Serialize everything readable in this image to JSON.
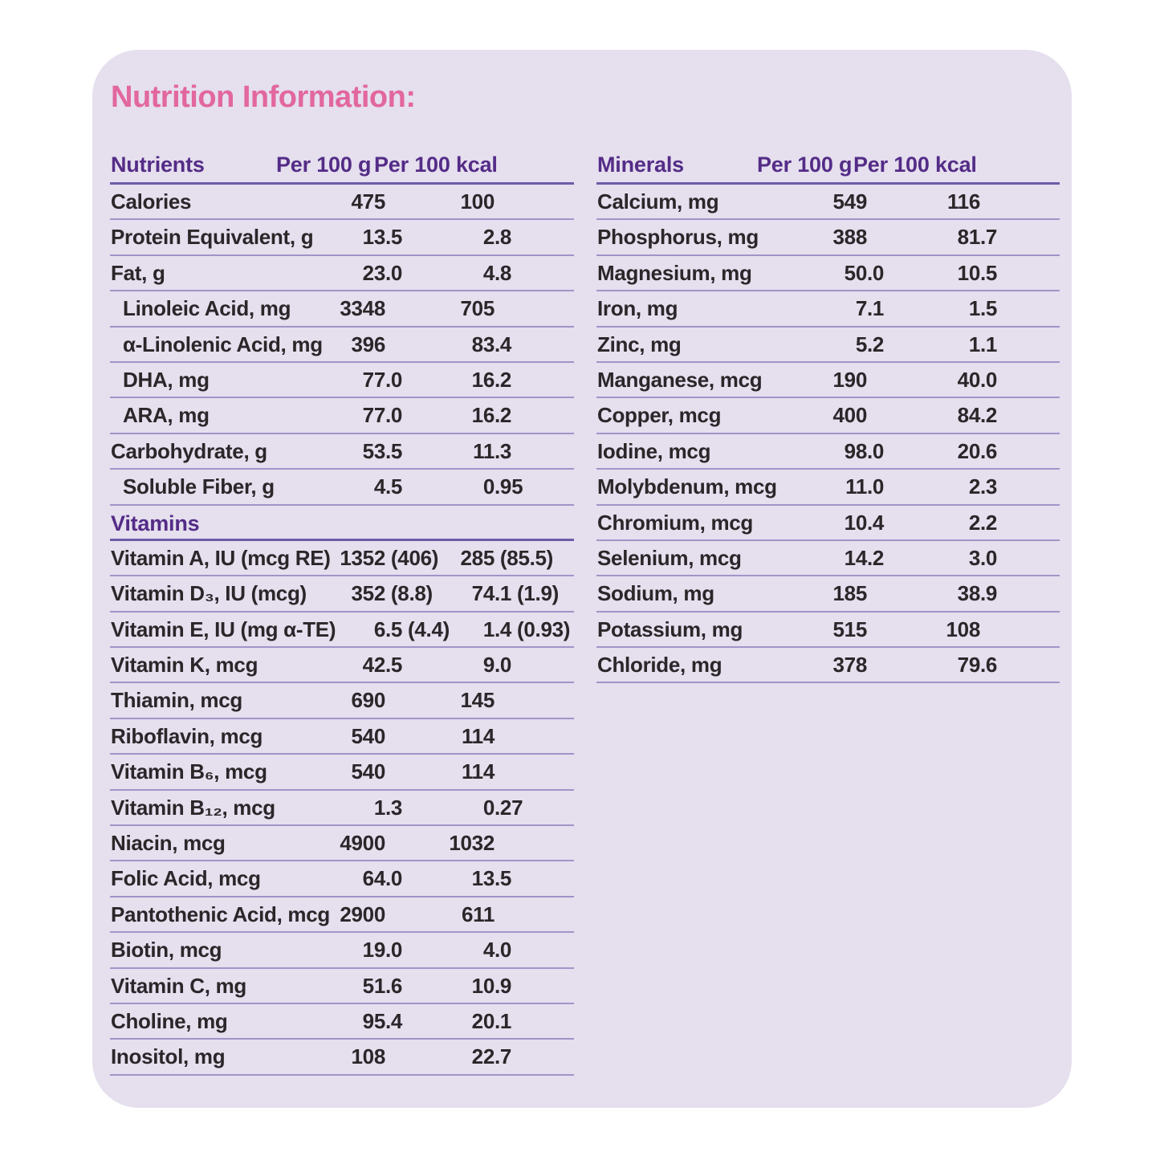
{
  "title": "Nutrition Information:",
  "colors": {
    "card_background": "#E5DFEE",
    "title_pink": "#E2679F",
    "header_purple": "#542C87",
    "body_text": "#2B2629",
    "row_line": "#A194C8",
    "header_line": "#6C5CA7"
  },
  "nutrients_table": {
    "header": {
      "label": "Nutrients",
      "col1": "Per 100 g",
      "col2": "Per 100 kcal"
    },
    "rows": [
      {
        "label": "Calories",
        "per100g": "475",
        "per100kcal": "100"
      },
      {
        "label": "Protein Equivalent, g",
        "per100g": "13.5",
        "per100kcal": "2.8"
      },
      {
        "label": "Fat, g",
        "per100g": "23.0",
        "per100kcal": "4.8"
      },
      {
        "label": "Linoleic Acid, mg",
        "indent": true,
        "per100g": "3348",
        "per100kcal": "705"
      },
      {
        "label": "α-Linolenic Acid, mg",
        "indent": true,
        "per100g": "396",
        "per100kcal": "83.4"
      },
      {
        "label": "DHA, mg",
        "indent": true,
        "per100g": "77.0",
        "per100kcal": "16.2"
      },
      {
        "label": "ARA, mg",
        "indent": true,
        "per100g": "77.0",
        "per100kcal": "16.2"
      },
      {
        "label": "Carbohydrate, g",
        "per100g": "53.5",
        "per100kcal": "11.3"
      },
      {
        "label": "Soluble Fiber, g",
        "indent": true,
        "per100g": "4.5",
        "per100kcal": "0.95"
      },
      {
        "section": "Vitamins"
      },
      {
        "label": "Vitamin A, IU (mcg RE)",
        "per100g": "1352 (406)",
        "per100kcal": "285 (85.5)"
      },
      {
        "label": "Vitamin D₃, IU (mcg)",
        "per100g": "352 (8.8)",
        "per100kcal": "74.1 (1.9)"
      },
      {
        "label": "Vitamin E, IU (mg α-TE)",
        "per100g": "6.5 (4.4)",
        "per100kcal": "1.4 (0.93)"
      },
      {
        "label": "Vitamin K, mcg",
        "per100g": "42.5",
        "per100kcal": "9.0"
      },
      {
        "label": "Thiamin, mcg",
        "per100g": "690",
        "per100kcal": "145"
      },
      {
        "label": "Riboflavin, mcg",
        "per100g": "540",
        "per100kcal": "114"
      },
      {
        "label": "Vitamin B₆, mcg",
        "per100g": "540",
        "per100kcal": "114"
      },
      {
        "label": "Vitamin B₁₂, mcg",
        "per100g": "1.3",
        "per100kcal": "0.27"
      },
      {
        "label": "Niacin, mcg",
        "per100g": "4900",
        "per100kcal": "1032"
      },
      {
        "label": "Folic Acid, mcg",
        "per100g": "64.0",
        "per100kcal": "13.5"
      },
      {
        "label": "Pantothenic Acid, mcg",
        "per100g": "2900",
        "per100kcal": "611"
      },
      {
        "label": "Biotin, mcg",
        "per100g": "19.0",
        "per100kcal": "4.0"
      },
      {
        "label": "Vitamin C, mg",
        "per100g": "51.6",
        "per100kcal": "10.9"
      },
      {
        "label": "Choline, mg",
        "per100g": "95.4",
        "per100kcal": "20.1"
      },
      {
        "label": "Inositol, mg",
        "per100g": "108",
        "per100kcal": "22.7"
      }
    ]
  },
  "minerals_table": {
    "header": {
      "label": "Minerals",
      "col1": "Per 100 g",
      "col2": "Per 100 kcal"
    },
    "rows": [
      {
        "label": "Calcium, mg",
        "per100g": "549",
        "per100kcal": "116"
      },
      {
        "label": "Phosphorus, mg",
        "per100g": "388",
        "per100kcal": "81.7"
      },
      {
        "label": "Magnesium, mg",
        "per100g": "50.0",
        "per100kcal": "10.5"
      },
      {
        "label": "Iron, mg",
        "per100g": "7.1",
        "per100kcal": "1.5"
      },
      {
        "label": "Zinc, mg",
        "per100g": "5.2",
        "per100kcal": "1.1"
      },
      {
        "label": "Manganese, mcg",
        "per100g": "190",
        "per100kcal": "40.0"
      },
      {
        "label": "Copper, mcg",
        "per100g": "400",
        "per100kcal": "84.2"
      },
      {
        "label": "Iodine, mcg",
        "per100g": "98.0",
        "per100kcal": "20.6"
      },
      {
        "label": "Molybdenum, mcg",
        "per100g": "11.0",
        "per100kcal": "2.3"
      },
      {
        "label": "Chromium, mcg",
        "per100g": "10.4",
        "per100kcal": "2.2"
      },
      {
        "label": "Selenium, mcg",
        "per100g": "14.2",
        "per100kcal": "3.0"
      },
      {
        "label": "Sodium, mg",
        "per100g": "185",
        "per100kcal": "38.9"
      },
      {
        "label": "Potassium, mg",
        "per100g": "515",
        "per100kcal": "108"
      },
      {
        "label": "Chloride, mg",
        "per100g": "378",
        "per100kcal": "79.6"
      }
    ]
  }
}
